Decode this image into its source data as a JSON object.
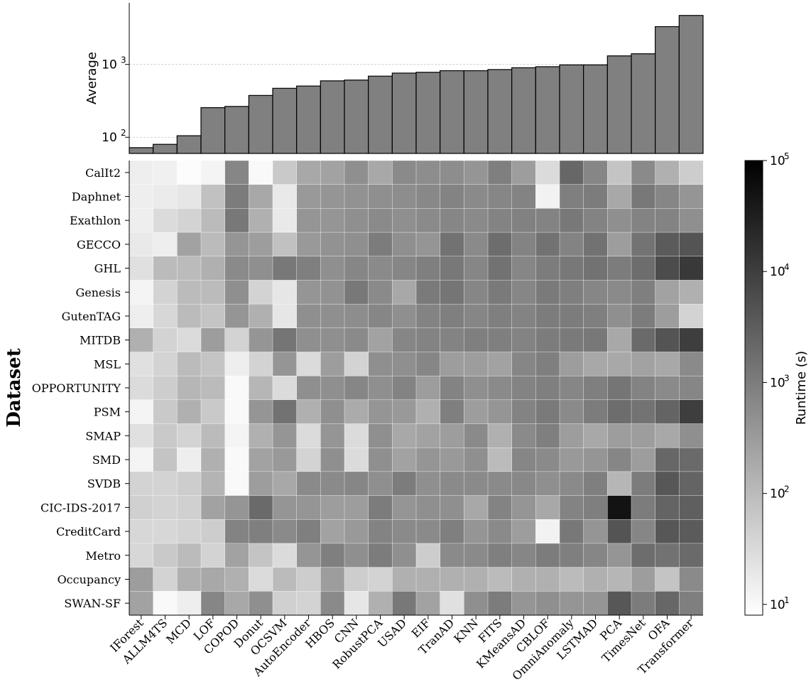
{
  "chart_data": [
    {
      "type": "bar",
      "ylabel": "Average",
      "yscale": "log",
      "ylim": [
        60,
        7000
      ],
      "yticks": [
        {
          "value": 100,
          "label": "10",
          "exp": "2"
        },
        {
          "value": 1000,
          "label": "10",
          "exp": "3"
        }
      ],
      "grid": true,
      "bar_color": "#808080",
      "categories": [
        "IForest",
        "ALLM4TS",
        "MCD",
        "LOF",
        "COPOD",
        "Donut",
        "OCSVM",
        "AutoEncoder",
        "HBOS",
        "CNN",
        "RobustPCA",
        "USAD",
        "EIF",
        "TranAD",
        "KNN",
        "FITS",
        "KMeansAD",
        "CBLOF",
        "OmniAnomaly",
        "LSTMAD",
        "PCA",
        "TimesNet",
        "OFA",
        "Transformer"
      ],
      "values": [
        72,
        80,
        105,
        255,
        265,
        375,
        470,
        505,
        595,
        610,
        690,
        760,
        780,
        820,
        820,
        850,
        900,
        930,
        985,
        985,
        1310,
        1400,
        3300,
        4700
      ]
    },
    {
      "type": "heatmap",
      "ylabel": "Dataset",
      "colorbar_label": "Runtime (s)",
      "colorscale": "log",
      "crange": [
        8,
        100000
      ],
      "colorbar_ticks": [
        {
          "value": 10,
          "label": "10",
          "exp": "1"
        },
        {
          "value": 100,
          "label": "10",
          "exp": "2"
        },
        {
          "value": 1000,
          "label": "10",
          "exp": "3"
        },
        {
          "value": 10000,
          "label": "10",
          "exp": "4"
        },
        {
          "value": 100000,
          "label": "10",
          "exp": "5"
        }
      ],
      "x": [
        "IForest",
        "ALLM4TS",
        "MCD",
        "LOF",
        "COPOD",
        "Donut",
        "OCSVM",
        "AutoEncoder",
        "HBOS",
        "CNN",
        "RobustPCA",
        "USAD",
        "EIF",
        "TranAD",
        "KNN",
        "FITS",
        "KMeansAD",
        "CBLOF",
        "OmniAnomaly",
        "LSTMAD",
        "PCA",
        "TimesNet",
        "OFA",
        "Transformer"
      ],
      "y": [
        "CalIt2",
        "Daphnet",
        "Exathlon",
        "GECCO",
        "GHL",
        "Genesis",
        "GutenTAG",
        "MITDB",
        "MSL",
        "OPPORTUNITY",
        "PSM",
        "SMAP",
        "SMD",
        "SVDB",
        "CIC-IDS-2017",
        "CreditCard",
        "Metro",
        "Occupancy",
        "SWAN-SF"
      ],
      "values": [
        [
          15,
          14,
          9,
          12,
          700,
          10,
          60,
          200,
          250,
          500,
          200,
          600,
          550,
          550,
          400,
          900,
          300,
          30,
          2200,
          700,
          70,
          600,
          150,
          50
        ],
        [
          15,
          17,
          20,
          80,
          1000,
          200,
          18,
          350,
          400,
          450,
          500,
          550,
          650,
          800,
          600,
          700,
          800,
          13,
          900,
          1000,
          200,
          1200,
          700,
          400
        ],
        [
          15,
          30,
          40,
          100,
          1200,
          150,
          18,
          400,
          400,
          500,
          600,
          500,
          600,
          700,
          600,
          800,
          850,
          800,
          1200,
          800,
          500,
          800,
          800,
          500
        ],
        [
          18,
          15,
          250,
          100,
          400,
          300,
          80,
          350,
          450,
          500,
          1000,
          500,
          400,
          1500,
          600,
          1800,
          800,
          1500,
          800,
          1500,
          300,
          1400,
          3500,
          4500
        ],
        [
          25,
          100,
          100,
          150,
          600,
          500,
          1200,
          900,
          500,
          700,
          600,
          700,
          900,
          1200,
          700,
          1500,
          700,
          1000,
          1200,
          1500,
          1000,
          1800,
          6000,
          12000
        ],
        [
          12,
          40,
          100,
          100,
          500,
          40,
          20,
          400,
          450,
          1200,
          600,
          200,
          1100,
          1300,
          700,
          1100,
          700,
          1100,
          900,
          700,
          600,
          900,
          250,
          150
        ],
        [
          15,
          35,
          100,
          70,
          400,
          150,
          20,
          500,
          500,
          550,
          700,
          500,
          800,
          900,
          700,
          900,
          800,
          1000,
          1000,
          900,
          500,
          1000,
          300,
          40
        ],
        [
          150,
          40,
          30,
          300,
          40,
          400,
          1300,
          500,
          500,
          600,
          250,
          700,
          800,
          800,
          900,
          900,
          800,
          1000,
          1100,
          1200,
          200,
          2000,
          4500,
          10000
        ],
        [
          25,
          40,
          100,
          70,
          15,
          40,
          400,
          30,
          300,
          40,
          500,
          500,
          700,
          300,
          300,
          250,
          700,
          900,
          300,
          200,
          200,
          250,
          200,
          600
        ],
        [
          30,
          50,
          120,
          100,
          10,
          120,
          30,
          500,
          500,
          700,
          500,
          800,
          300,
          800,
          500,
          600,
          800,
          900,
          700,
          900,
          1300,
          800,
          600,
          700
        ],
        [
          12,
          60,
          150,
          60,
          10,
          400,
          1500,
          150,
          500,
          180,
          400,
          350,
          150,
          900,
          300,
          400,
          800,
          1100,
          600,
          1000,
          1800,
          1400,
          2500,
          10000
        ],
        [
          25,
          60,
          40,
          100,
          12,
          150,
          400,
          30,
          400,
          30,
          500,
          200,
          250,
          300,
          600,
          150,
          600,
          900,
          300,
          200,
          300,
          300,
          200,
          500
        ],
        [
          12,
          70,
          15,
          150,
          10,
          250,
          350,
          40,
          500,
          30,
          500,
          250,
          400,
          350,
          500,
          100,
          700,
          600,
          350,
          400,
          700,
          300,
          2200,
          2000
        ],
        [
          40,
          40,
          50,
          130,
          10,
          300,
          200,
          600,
          600,
          700,
          500,
          1000,
          500,
          600,
          600,
          600,
          650,
          500,
          600,
          900,
          120,
          1000,
          4000,
          2500
        ],
        [
          45,
          40,
          45,
          250,
          400,
          2000,
          400,
          400,
          300,
          300,
          1000,
          400,
          500,
          500,
          200,
          800,
          400,
          200,
          800,
          900,
          50000,
          1000,
          2500,
          3000
        ],
        [
          35,
          35,
          40,
          50,
          800,
          900,
          600,
          900,
          250,
          350,
          800,
          600,
          600,
          900,
          400,
          600,
          300,
          13,
          1200,
          400,
          4500,
          700,
          4000,
          3500
        ],
        [
          35,
          60,
          100,
          40,
          250,
          70,
          30,
          400,
          900,
          500,
          1000,
          500,
          50,
          600,
          600,
          900,
          700,
          1000,
          900,
          700,
          400,
          1800,
          1500,
          2000
        ],
        [
          300,
          40,
          150,
          200,
          150,
          30,
          100,
          50,
          300,
          50,
          40,
          150,
          150,
          150,
          150,
          100,
          150,
          150,
          100,
          150,
          120,
          300,
          70,
          600
        ],
        [
          250,
          10,
          15,
          700,
          200,
          500,
          45,
          40,
          600,
          20,
          150,
          1200,
          250,
          25,
          500,
          1000,
          400,
          500,
          400,
          400,
          4000,
          1000,
          2200,
          900
        ]
      ]
    }
  ]
}
